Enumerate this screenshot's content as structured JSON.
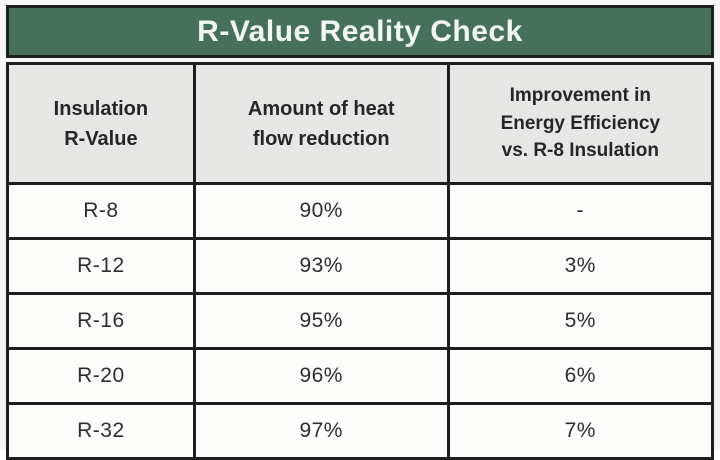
{
  "title": "R-Value Reality Check",
  "colors": {
    "title_bar_bg": "#47705b",
    "title_text": "#f1f7f2",
    "header_bg": "#e7e7e5",
    "row_bg": "#fdfdfc",
    "border": "#1d1f1e",
    "text": "#2e2e2e"
  },
  "chart_data": {
    "type": "table",
    "title": "R-Value Reality Check",
    "columns": [
      "Insulation R-Value",
      "Amount of heat flow reduction",
      "Improvement in Energy Efficiency vs. R-8 Insulation"
    ],
    "rows": [
      [
        "R-8",
        "90%",
        "-"
      ],
      [
        "R-12",
        "93%",
        "3%"
      ],
      [
        "R-16",
        "95%",
        "5%"
      ],
      [
        "R-20",
        "96%",
        "6%"
      ],
      [
        "R-32",
        "97%",
        "7%"
      ]
    ]
  },
  "table": {
    "headers": [
      "Insulation\nR-Value",
      "Amount of heat\nflow reduction",
      "Improvement in\nEnergy Efficiency\nvs. R-8 Insulation"
    ],
    "rows": [
      [
        "R-8",
        "90%",
        "-"
      ],
      [
        "R-12",
        "93%",
        "3%"
      ],
      [
        "R-16",
        "95%",
        "5%"
      ],
      [
        "R-20",
        "96%",
        "6%"
      ],
      [
        "R-32",
        "97%",
        "7%"
      ]
    ]
  }
}
